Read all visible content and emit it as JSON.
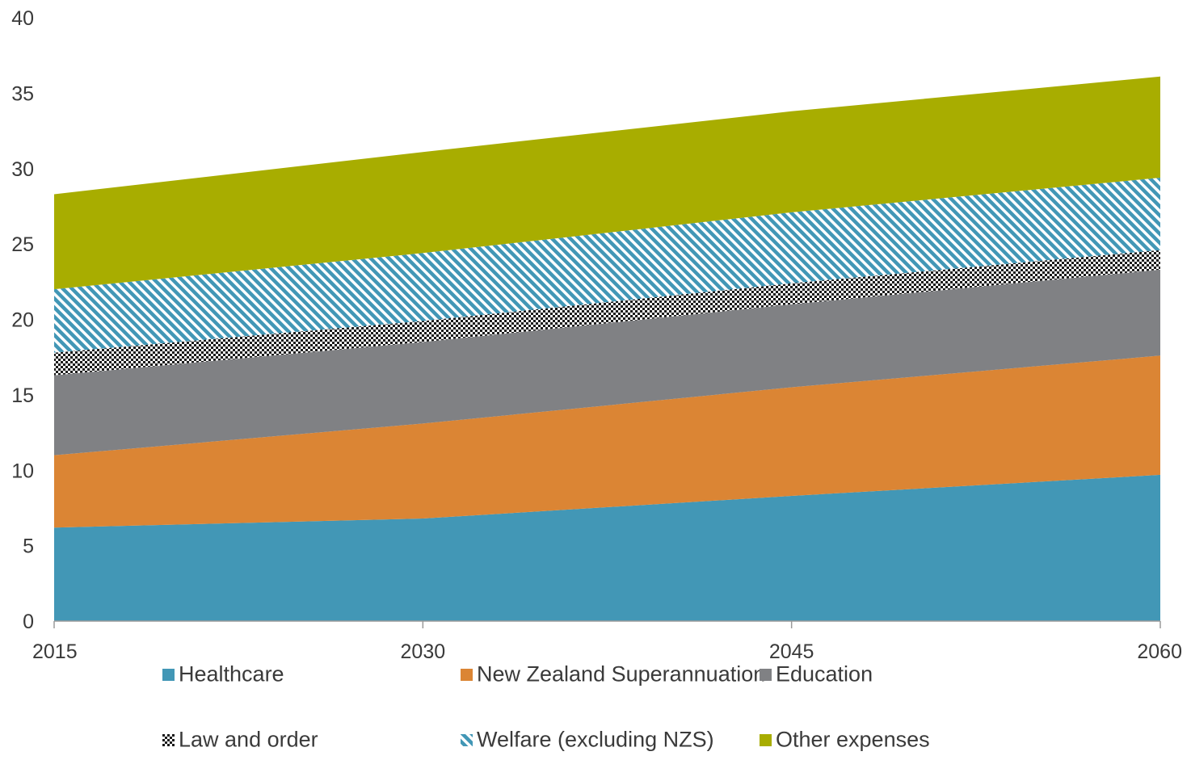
{
  "chart_data": {
    "type": "area",
    "stacked": true,
    "x": [
      2015,
      2030,
      2045,
      2060
    ],
    "xlim": [
      2015,
      2060
    ],
    "ylim": [
      0,
      40
    ],
    "yticks": [
      0,
      5,
      10,
      15,
      20,
      25,
      30,
      35,
      40
    ],
    "xticks": [
      2015,
      2030,
      2045,
      2060
    ],
    "title": "",
    "xlabel": "",
    "ylabel": "",
    "grid": false,
    "legend_position": "bottom",
    "series": [
      {
        "name": "Healthcare",
        "values": [
          6.2,
          6.8,
          8.3,
          9.7
        ],
        "color": "#4297b6",
        "pattern": "solid"
      },
      {
        "name": "New Zealand Superannuation",
        "values": [
          4.8,
          6.3,
          7.2,
          7.9
        ],
        "color": "#db8534",
        "pattern": "solid"
      },
      {
        "name": "Education",
        "values": [
          5.3,
          5.4,
          5.5,
          5.7
        ],
        "color": "#808184",
        "pattern": "solid"
      },
      {
        "name": "Law and order",
        "values": [
          1.5,
          1.4,
          1.4,
          1.3
        ],
        "color": "#1a1a1a",
        "pattern": "checker"
      },
      {
        "name": "Welfare (excluding NZS)",
        "values": [
          4.2,
          4.5,
          4.7,
          4.8
        ],
        "color": "#4297b6",
        "pattern": "diagonal"
      },
      {
        "name": "Other expenses",
        "values": [
          6.3,
          6.7,
          6.7,
          6.7
        ],
        "color": "#a8ad00",
        "pattern": "solid"
      }
    ]
  }
}
